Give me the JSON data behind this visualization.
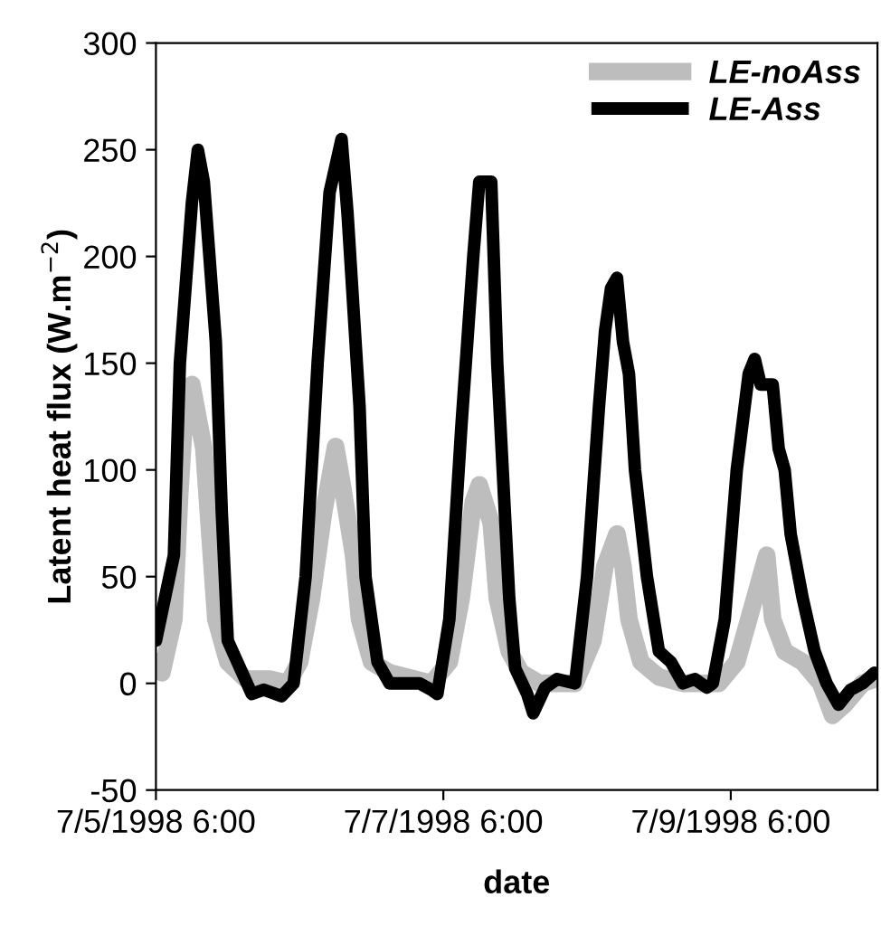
{
  "chart_data": {
    "type": "line",
    "xlabel": "date",
    "ylabel": "Latent heat flux (W.m$^{−2}$)",
    "xlim": [
      "1998-07-05T06:00",
      "1998-07-10T06:30"
    ],
    "xticks": [
      {
        "value": "1998-07-05T06:00",
        "label": "7/5/1998 6:00"
      },
      {
        "value": "1998-07-07T06:00",
        "label": "7/7/1998 6:00"
      },
      {
        "value": "1998-07-09T06:00",
        "label": "7/9/1998 6:00"
      }
    ],
    "ylim": [
      -50,
      300
    ],
    "yticks": [
      -50,
      0,
      50,
      100,
      150,
      200,
      250,
      300
    ],
    "grid": false,
    "legend": "top right",
    "marker": "none",
    "line_style": "solid",
    "series": [
      {
        "name": "LE-noAss",
        "color": "#bdbdbd",
        "x": [
          "1998-07-05T06:00",
          "1998-07-05T07:00",
          "1998-07-05T09:00",
          "1998-07-05T10:00",
          "1998-07-05T11:00",
          "1998-07-05T12:00",
          "1998-07-05T14:00",
          "1998-07-05T15:00",
          "1998-07-05T16:00",
          "1998-07-05T18:00",
          "1998-07-05T21:00",
          "1998-07-06T01:00",
          "1998-07-06T04:00",
          "1998-07-06T06:00",
          "1998-07-06T08:00",
          "1998-07-06T10:00",
          "1998-07-06T12:00",
          "1998-07-06T13:00",
          "1998-07-06T15:00",
          "1998-07-06T16:00",
          "1998-07-06T18:00",
          "1998-07-06T21:00",
          "1998-07-07T04:00",
          "1998-07-07T07:00",
          "1998-07-07T09:00",
          "1998-07-07T11:00",
          "1998-07-07T12:00",
          "1998-07-07T14:00",
          "1998-07-07T15:00",
          "1998-07-07T17:00",
          "1998-07-07T19:00",
          "1998-07-07T22:00",
          "1998-07-08T04:00",
          "1998-07-08T07:00",
          "1998-07-08T09:00",
          "1998-07-08T11:00",
          "1998-07-08T12:00",
          "1998-07-08T13:00",
          "1998-07-08T15:00",
          "1998-07-08T18:00",
          "1998-07-08T22:00",
          "1998-07-09T04:00",
          "1998-07-09T07:00",
          "1998-07-09T10:00",
          "1998-07-09T11:00",
          "1998-07-09T12:00",
          "1998-07-09T13:00",
          "1998-07-09T15:00",
          "1998-07-09T18:00",
          "1998-07-09T21:00",
          "1998-07-09T23:00",
          "1998-07-10T01:00",
          "1998-07-10T04:00",
          "1998-07-10T06:00"
        ],
        "values": [
          10,
          5,
          30,
          90,
          135,
          140,
          110,
          70,
          30,
          10,
          2,
          2,
          0,
          10,
          40,
          80,
          111,
          95,
          60,
          30,
          10,
          5,
          0,
          10,
          40,
          85,
          93,
          75,
          40,
          15,
          5,
          0,
          0,
          20,
          55,
          70,
          55,
          30,
          10,
          3,
          0,
          0,
          10,
          40,
          50,
          60,
          30,
          15,
          10,
          0,
          -15,
          -10,
          0,
          2
        ]
      },
      {
        "name": "LE-Ass",
        "color": "#000000",
        "x": [
          "1998-07-05T06:00",
          "1998-07-05T09:00",
          "1998-07-05T10:00",
          "1998-07-05T12:00",
          "1998-07-05T13:00",
          "1998-07-05T14:00",
          "1998-07-05T16:00",
          "1998-07-05T17:00",
          "1998-07-05T18:00",
          "1998-07-05T22:00",
          "1998-07-06T00:00",
          "1998-07-06T03:00",
          "1998-07-06T05:00",
          "1998-07-06T07:00",
          "1998-07-06T09:00",
          "1998-07-06T11:00",
          "1998-07-06T13:00",
          "1998-07-06T14:00",
          "1998-07-06T16:00",
          "1998-07-06T17:00",
          "1998-07-06T19:00",
          "1998-07-06T21:00",
          "1998-07-07T02:00",
          "1998-07-07T04:00",
          "1998-07-07T05:00",
          "1998-07-07T07:00",
          "1998-07-07T09:00",
          "1998-07-07T11:00",
          "1998-07-07T12:00",
          "1998-07-07T14:00",
          "1998-07-07T15:00",
          "1998-07-07T17:00",
          "1998-07-07T18:00",
          "1998-07-07T20:00",
          "1998-07-07T21:00",
          "1998-07-07T23:00",
          "1998-07-08T01:00",
          "1998-07-08T04:00",
          "1998-07-08T06:00",
          "1998-07-08T08:00",
          "1998-07-08T09:00",
          "1998-07-08T10:00",
          "1998-07-08T11:00",
          "1998-07-08T12:00",
          "1998-07-08T13:00",
          "1998-07-08T14:00",
          "1998-07-08T16:00",
          "1998-07-08T18:00",
          "1998-07-08T20:00",
          "1998-07-08T22:00",
          "1998-07-09T00:00",
          "1998-07-09T02:00",
          "1998-07-09T03:00",
          "1998-07-09T05:00",
          "1998-07-09T07:00",
          "1998-07-09T09:00",
          "1998-07-09T10:00",
          "1998-07-09T11:00",
          "1998-07-09T13:00",
          "1998-07-09T14:00",
          "1998-07-09T15:00",
          "1998-07-09T16:00",
          "1998-07-09T18:00",
          "1998-07-09T20:00",
          "1998-07-09T22:00",
          "1998-07-10T00:00",
          "1998-07-10T02:00",
          "1998-07-10T04:00",
          "1998-07-10T06:00"
        ],
        "values": [
          20,
          60,
          150,
          225,
          250,
          235,
          160,
          80,
          20,
          -5,
          -3,
          -6,
          0,
          50,
          150,
          230,
          255,
          220,
          130,
          50,
          10,
          0,
          0,
          -3,
          -5,
          30,
          120,
          200,
          235,
          235,
          150,
          40,
          7,
          -5,
          -14,
          -2,
          2,
          0,
          50,
          130,
          165,
          185,
          190,
          160,
          145,
          100,
          50,
          15,
          10,
          0,
          2,
          -2,
          0,
          30,
          100,
          145,
          152,
          140,
          140,
          110,
          100,
          70,
          40,
          15,
          0,
          -10,
          -3,
          0,
          5
        ]
      }
    ]
  }
}
